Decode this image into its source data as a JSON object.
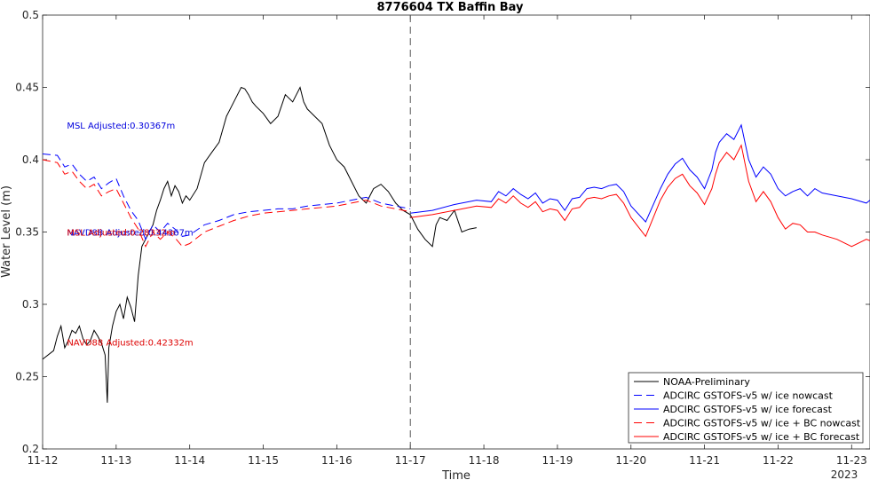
{
  "chart_data": {
    "type": "line",
    "title": "8776604 TX Baffin Bay",
    "xlabel": "Time",
    "ylabel": "Water Level (m)",
    "ylim": [
      0.2,
      0.5
    ],
    "xlim": [
      0,
      11.25
    ],
    "yticks": [
      "0.2",
      "0.25",
      "0.3",
      "0.35",
      "0.4",
      "0.45",
      "0.5"
    ],
    "xticks": [
      {
        "x": 0,
        "label": "11-12"
      },
      {
        "x": 1,
        "label": "11-13"
      },
      {
        "x": 2,
        "label": "11-14"
      },
      {
        "x": 3,
        "label": "11-15"
      },
      {
        "x": 4,
        "label": "11-16"
      },
      {
        "x": 5,
        "label": "11-17"
      },
      {
        "x": 6,
        "label": "11-18"
      },
      {
        "x": 7,
        "label": "11-19"
      },
      {
        "x": 8,
        "label": "11-20"
      },
      {
        "x": 9,
        "label": "11-21"
      },
      {
        "x": 10,
        "label": "11-22"
      },
      {
        "x": 11,
        "label": "11-23"
      }
    ],
    "year_label": "2023",
    "nowcast_divider_x": 5.0,
    "grid": false,
    "legend_position": "bottom-right",
    "annotations": [
      {
        "text": "MSL Adjusted:0.30367m",
        "x": 0.33,
        "y": 0.424,
        "color": "#0000dd"
      },
      {
        "text": "NAVD88 Adjusted:0.44367m",
        "x": 0.33,
        "y": 0.35,
        "color": "#0000dd"
      },
      {
        "text": "MSL Adjusted:0.28332m",
        "x": 0.33,
        "y": 0.35,
        "color": "#dd0000"
      },
      {
        "text": "NAVD88 Adjusted:0.42332m",
        "x": 0.33,
        "y": 0.274,
        "color": "#dd0000"
      }
    ],
    "series": [
      {
        "name": "NOAA-Preliminary",
        "color": "#000000",
        "style": "solid",
        "x": [
          0.0,
          0.15,
          0.2,
          0.25,
          0.3,
          0.35,
          0.4,
          0.45,
          0.5,
          0.55,
          0.6,
          0.65,
          0.7,
          0.75,
          0.8,
          0.85,
          0.88,
          0.9,
          0.95,
          1.0,
          1.05,
          1.1,
          1.15,
          1.2,
          1.25,
          1.3,
          1.35,
          1.4,
          1.45,
          1.5,
          1.55,
          1.6,
          1.65,
          1.7,
          1.75,
          1.8,
          1.85,
          1.9,
          1.95,
          2.0,
          2.1,
          2.2,
          2.3,
          2.4,
          2.5,
          2.6,
          2.7,
          2.75,
          2.8,
          2.85,
          2.9,
          3.0,
          3.1,
          3.2,
          3.3,
          3.4,
          3.5,
          3.55,
          3.6,
          3.7,
          3.8,
          3.9,
          4.0,
          4.1,
          4.2,
          4.3,
          4.4,
          4.5,
          4.6,
          4.7,
          4.8,
          4.9,
          5.0,
          5.05,
          5.1,
          5.2,
          5.3,
          5.35,
          5.4,
          5.5,
          5.6,
          5.7,
          5.8,
          5.9
        ],
        "y": [
          0.262,
          0.268,
          0.278,
          0.285,
          0.27,
          0.275,
          0.282,
          0.28,
          0.285,
          0.276,
          0.272,
          0.275,
          0.282,
          0.278,
          0.273,
          0.265,
          0.232,
          0.27,
          0.285,
          0.295,
          0.3,
          0.29,
          0.305,
          0.298,
          0.288,
          0.32,
          0.34,
          0.345,
          0.35,
          0.355,
          0.365,
          0.372,
          0.38,
          0.385,
          0.375,
          0.382,
          0.378,
          0.37,
          0.375,
          0.372,
          0.38,
          0.398,
          0.405,
          0.412,
          0.43,
          0.44,
          0.45,
          0.449,
          0.445,
          0.44,
          0.437,
          0.432,
          0.425,
          0.43,
          0.445,
          0.44,
          0.45,
          0.44,
          0.435,
          0.43,
          0.425,
          0.41,
          0.4,
          0.395,
          0.385,
          0.375,
          0.37,
          0.38,
          0.383,
          0.378,
          0.37,
          0.365,
          0.362,
          0.357,
          0.352,
          0.345,
          0.34,
          0.355,
          0.36,
          0.358,
          0.365,
          0.35,
          0.352,
          0.353
        ]
      },
      {
        "name": "ADCIRC GSTOFS-v5  w/ ice nowcast",
        "color": "#0000ff",
        "style": "dashed",
        "x": [
          0.0,
          0.2,
          0.3,
          0.4,
          0.5,
          0.6,
          0.7,
          0.8,
          0.9,
          1.0,
          1.1,
          1.2,
          1.3,
          1.4,
          1.5,
          1.6,
          1.7,
          1.8,
          1.9,
          2.0,
          2.2,
          2.4,
          2.6,
          2.8,
          3.0,
          3.2,
          3.4,
          3.6,
          3.8,
          4.0,
          4.2,
          4.4,
          4.6,
          4.8,
          5.0
        ],
        "y": [
          0.404,
          0.403,
          0.395,
          0.397,
          0.39,
          0.385,
          0.388,
          0.38,
          0.384,
          0.387,
          0.375,
          0.365,
          0.358,
          0.345,
          0.355,
          0.35,
          0.356,
          0.352,
          0.347,
          0.348,
          0.355,
          0.358,
          0.362,
          0.364,
          0.365,
          0.366,
          0.366,
          0.368,
          0.369,
          0.37,
          0.372,
          0.374,
          0.37,
          0.368,
          0.366
        ]
      },
      {
        "name": "ADCIRC GSTOFS-v5  w/ ice forecast",
        "color": "#0000ff",
        "style": "solid",
        "x": [
          5.0,
          5.3,
          5.6,
          5.9,
          6.1,
          6.2,
          6.3,
          6.4,
          6.5,
          6.6,
          6.7,
          6.8,
          6.9,
          7.0,
          7.1,
          7.2,
          7.3,
          7.4,
          7.5,
          7.6,
          7.7,
          7.8,
          7.9,
          8.0,
          8.2,
          8.4,
          8.5,
          8.6,
          8.7,
          8.8,
          8.9,
          9.0,
          9.1,
          9.15,
          9.2,
          9.3,
          9.4,
          9.5,
          9.6,
          9.7,
          9.8,
          9.9,
          10.0,
          10.1,
          10.2,
          10.3,
          10.4,
          10.5,
          10.6,
          10.8,
          11.0,
          11.2,
          11.25
        ],
        "y": [
          0.363,
          0.365,
          0.369,
          0.372,
          0.371,
          0.378,
          0.375,
          0.38,
          0.376,
          0.373,
          0.377,
          0.37,
          0.373,
          0.372,
          0.365,
          0.373,
          0.374,
          0.38,
          0.381,
          0.38,
          0.382,
          0.383,
          0.378,
          0.368,
          0.357,
          0.38,
          0.39,
          0.397,
          0.401,
          0.393,
          0.388,
          0.38,
          0.393,
          0.405,
          0.412,
          0.418,
          0.414,
          0.424,
          0.4,
          0.388,
          0.395,
          0.39,
          0.38,
          0.375,
          0.378,
          0.38,
          0.375,
          0.38,
          0.377,
          0.375,
          0.373,
          0.37,
          0.372
        ]
      },
      {
        "name": "ADCIRC GSTOFS-v5  w/ ice + BC nowcast",
        "color": "#ff0000",
        "style": "dashed",
        "x": [
          0.0,
          0.2,
          0.3,
          0.4,
          0.5,
          0.6,
          0.7,
          0.8,
          0.9,
          1.0,
          1.1,
          1.2,
          1.3,
          1.4,
          1.5,
          1.6,
          1.7,
          1.8,
          1.9,
          2.0,
          2.2,
          2.4,
          2.6,
          2.8,
          3.0,
          3.2,
          3.4,
          3.6,
          3.8,
          4.0,
          4.2,
          4.4,
          4.6,
          4.8,
          5.0
        ],
        "y": [
          0.4,
          0.398,
          0.39,
          0.392,
          0.385,
          0.38,
          0.383,
          0.375,
          0.378,
          0.38,
          0.37,
          0.36,
          0.352,
          0.34,
          0.35,
          0.345,
          0.35,
          0.346,
          0.34,
          0.342,
          0.35,
          0.354,
          0.358,
          0.361,
          0.363,
          0.364,
          0.365,
          0.366,
          0.367,
          0.368,
          0.37,
          0.372,
          0.368,
          0.366,
          0.364
        ]
      },
      {
        "name": "ADCIRC GSTOFS-v5  w/ ice + BC forecast",
        "color": "#ff0000",
        "style": "solid",
        "x": [
          5.0,
          5.3,
          5.6,
          5.9,
          6.1,
          6.2,
          6.3,
          6.4,
          6.5,
          6.6,
          6.7,
          6.8,
          6.9,
          7.0,
          7.1,
          7.2,
          7.3,
          7.4,
          7.5,
          7.6,
          7.7,
          7.8,
          7.9,
          8.0,
          8.2,
          8.4,
          8.5,
          8.6,
          8.7,
          8.8,
          8.9,
          9.0,
          9.1,
          9.15,
          9.2,
          9.3,
          9.4,
          9.5,
          9.6,
          9.7,
          9.8,
          9.9,
          10.0,
          10.1,
          10.2,
          10.3,
          10.4,
          10.5,
          10.6,
          10.8,
          11.0,
          11.2,
          11.25
        ],
        "y": [
          0.36,
          0.362,
          0.365,
          0.368,
          0.367,
          0.373,
          0.37,
          0.375,
          0.37,
          0.367,
          0.371,
          0.364,
          0.366,
          0.365,
          0.358,
          0.366,
          0.367,
          0.373,
          0.374,
          0.373,
          0.375,
          0.376,
          0.37,
          0.36,
          0.347,
          0.372,
          0.381,
          0.387,
          0.39,
          0.382,
          0.377,
          0.369,
          0.38,
          0.39,
          0.398,
          0.405,
          0.4,
          0.41,
          0.385,
          0.371,
          0.378,
          0.371,
          0.36,
          0.352,
          0.356,
          0.355,
          0.35,
          0.35,
          0.348,
          0.345,
          0.34,
          0.345,
          0.344
        ]
      }
    ]
  }
}
